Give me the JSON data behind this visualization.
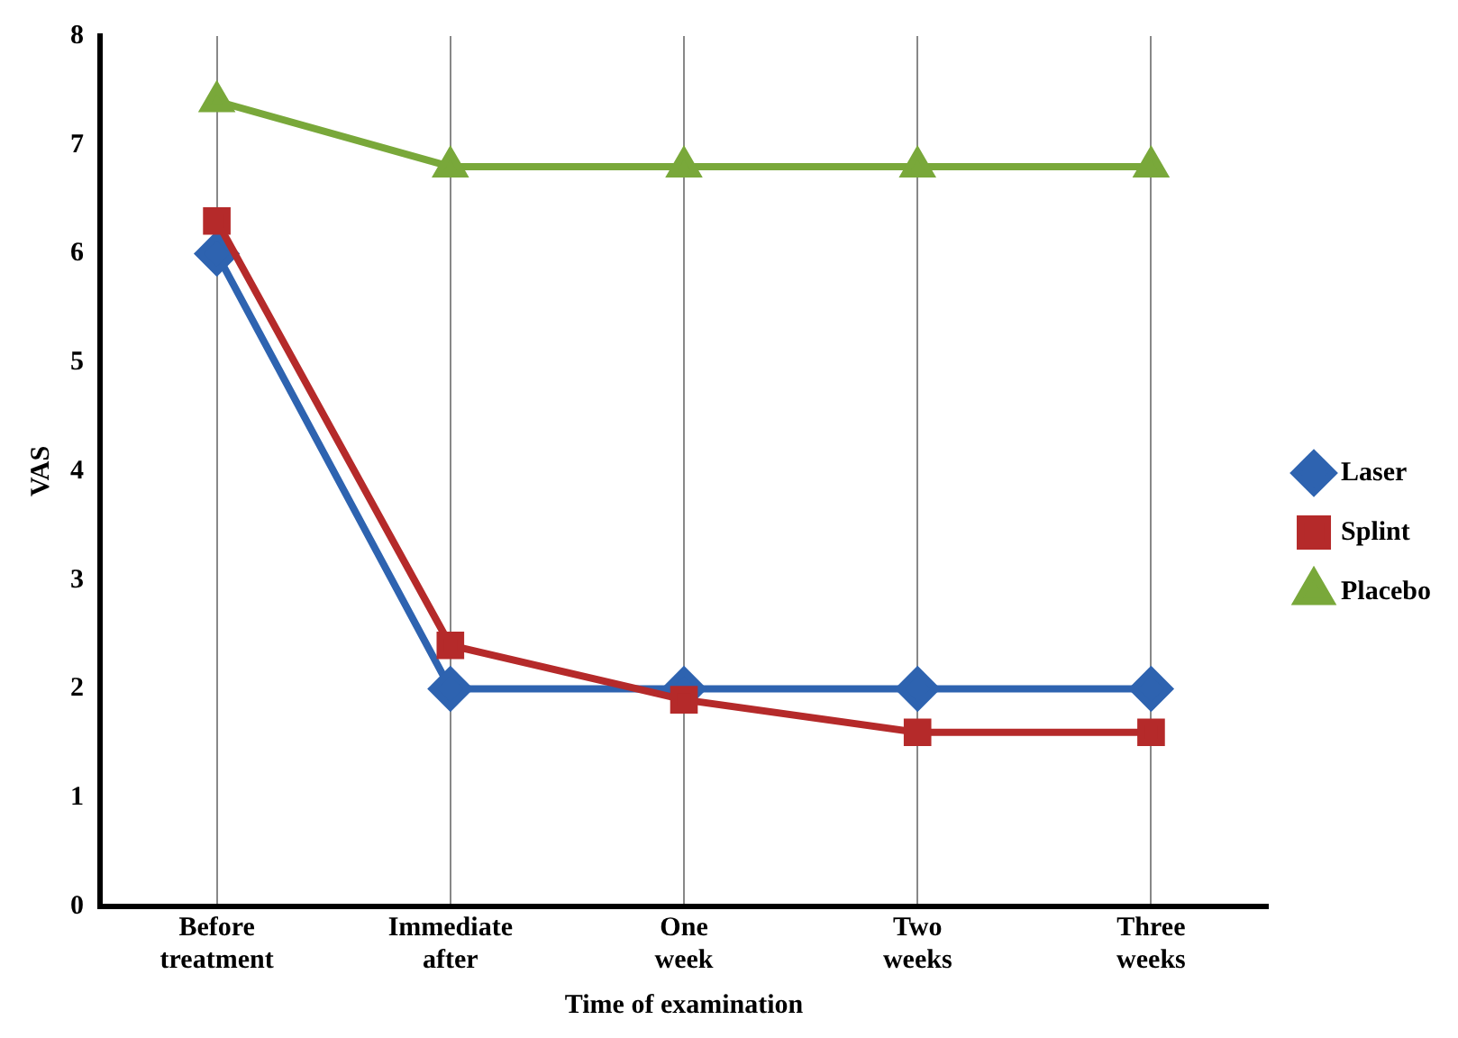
{
  "chart_data": {
    "type": "line",
    "xlabel": "Time of examination",
    "ylabel": "VAS",
    "categories": [
      "Before treatment",
      "Immediate after",
      "One week",
      "Two weeks",
      "Three weeks"
    ],
    "series": [
      {
        "name": "Laser",
        "color": "#2e63b0",
        "values": [
          6.0,
          2.0,
          2.0,
          2.0,
          2.0
        ],
        "marker": "diamond"
      },
      {
        "name": "Splint",
        "color": "#b52a2a",
        "values": [
          6.3,
          2.4,
          1.9,
          1.6,
          1.6
        ],
        "marker": "square"
      },
      {
        "name": "Placebo",
        "color": "#79a83a",
        "values": [
          7.4,
          6.8,
          6.8,
          6.8,
          6.8
        ],
        "marker": "triangle"
      }
    ],
    "ylim": [
      0,
      8
    ],
    "yticks": [
      0,
      1,
      2,
      3,
      4,
      5,
      6,
      7,
      8
    ],
    "grid": "x",
    "legend": "right",
    "line_style": "solid"
  }
}
